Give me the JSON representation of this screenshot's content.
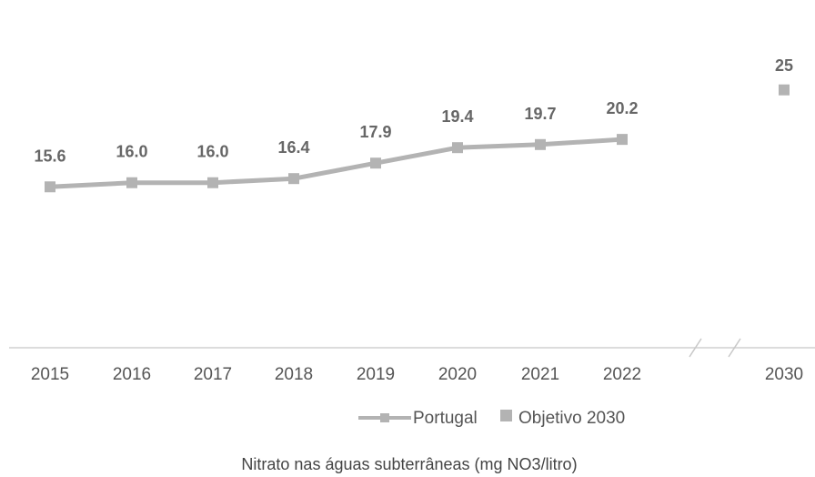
{
  "chart_data": {
    "type": "line",
    "title": "",
    "caption": "Nitrato nas águas subterrâneas (mg NO3/litro)",
    "xlabel": "",
    "ylabel": "",
    "ylim": [
      0,
      26
    ],
    "grid": false,
    "legend_position": "bottom",
    "categories": [
      "2015",
      "2016",
      "2017",
      "2018",
      "2019",
      "2020",
      "2021",
      "2022",
      "2030"
    ],
    "series": [
      {
        "name": "Portugal",
        "color": "#b3b3b3",
        "x": [
          "2015",
          "2016",
          "2017",
          "2018",
          "2019",
          "2020",
          "2021",
          "2022"
        ],
        "values": [
          15.6,
          16.0,
          16.0,
          16.4,
          17.9,
          19.4,
          19.7,
          20.2
        ],
        "labels": [
          "15.6",
          "16.0",
          "16.0",
          "16.4",
          "17.9",
          "19.4",
          "19.7",
          "20.2"
        ]
      },
      {
        "name": "Objetivo 2030",
        "color": "#b3b3b3",
        "x": [
          "2030"
        ],
        "values": [
          25
        ],
        "labels": [
          "25"
        ]
      }
    ],
    "axis_break": "between 2022 and 2030"
  }
}
